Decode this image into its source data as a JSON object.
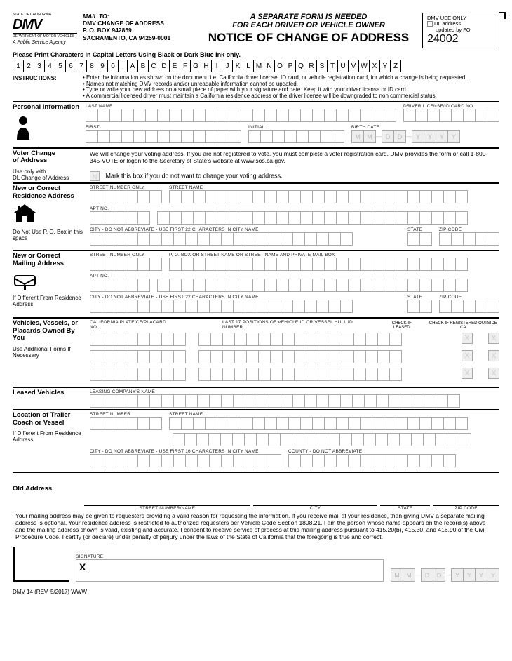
{
  "logo": {
    "text": "DMV",
    "sub": "DEPARTMENT OF MOTOR VEHICLES",
    "agency": "A Public Service Agency",
    "state": "STATE OF CALIFORNIA"
  },
  "mail": {
    "to": "MAIL TO:",
    "l1": "DMV CHANGE OF ADDRESS",
    "l2": "P. O. BOX 942859",
    "l3": "SACRAMENTO, CA 94259-0001"
  },
  "title": {
    "sep1": "A SEPARATE FORM IS NEEDED",
    "sep2": "FOR EACH DRIVER OR VEHICLE OWNER",
    "main": "NOTICE OF CHANGE OF ADDRESS"
  },
  "usebox": {
    "l1": "DMV USE ONLY",
    "l2": "DL address",
    "l3": "updated by FO",
    "num": "24002"
  },
  "print": "Please Print Characters In Capital Letters Using Black or Dark Blue Ink only.",
  "demo": {
    "nums": [
      "1",
      "2",
      "3",
      "4",
      "5",
      "6",
      "7",
      "8",
      "9",
      "0"
    ],
    "letters": [
      "A",
      "B",
      "C",
      "D",
      "E",
      "F",
      "G",
      "H",
      "I",
      "J",
      "K",
      "L",
      "M",
      "N",
      "O",
      "P",
      "Q",
      "R",
      "S",
      "T",
      "U",
      "V",
      "W",
      "X",
      "Y",
      "Z"
    ]
  },
  "instr": {
    "lbl": "INSTRUCTIONS:",
    "items": [
      "Enter the information as shown on the document, i.e. California driver license, ID card, or vehicle registration card, for which a change is being requested.",
      "Names not matching DMV records and/or unreadable information cannot be updated.",
      "Type or write your new address on a small piece of paper with your signature and date. Keep it with your driver license or ID card.",
      "A commercial licensed driver must maintain a California residence address or the driver license will be downgraded to non commercial status."
    ]
  },
  "personal": {
    "lbl": "Personal Information",
    "last": "LAST NAME",
    "dl": "DRIVER LICENSE/ID CARD NO.",
    "first": "FIRST",
    "initial": "INITIAL",
    "birth": "BIRTH DATE",
    "bd": [
      "M",
      "M",
      "D",
      "D",
      "Y",
      "Y",
      "Y",
      "Y"
    ]
  },
  "voter": {
    "lbl1": "Voter Change",
    "lbl2": "of Address",
    "sub1": "Use only with",
    "sub2": "DL Change of Address",
    "text": "We will change your voting address. If you are not registered to vote, you must complete a voter registration card. DMV provides the form or call 1-800-345-VOTE or logon to the Secretary of State's website at www.sos.ca.gov.",
    "chk": "Mark this box if you do not want to change your voting address.",
    "n": "N"
  },
  "res": {
    "lbl": "New or Correct Residence Address",
    "sub": "Do Not Use P. O. Box in this space",
    "street_no": "STREET NUMBER ONLY",
    "street": "STREET NAME",
    "apt": "APT NO.",
    "city": "CITY - DO NOT ABBREVIATE - USE FIRST 22 CHARACTERS IN CITY NAME",
    "state": "STATE",
    "zip": "ZIP CODE"
  },
  "mailaddr": {
    "lbl": "New or Correct Mailing Address",
    "sub": "If Different From Residence Address",
    "street_no": "STREET NUMBER ONLY",
    "pobox": "P. O. BOX OR STREET NAME OR STREET NAME AND PRIVATE MAIL BOX",
    "apt": "APT NO.",
    "city": "CITY - DO NOT ABBREVIATE - USE FIRST 22 CHARACTERS IN CITY NAME",
    "state": "STATE",
    "zip": "ZIP CODE"
  },
  "veh": {
    "lbl": "Vehicles, Vessels, or Placards Owned By You",
    "sub": "Use Additional Forms If Necessary",
    "plate": "CALIFORNIA PLATE/CF/PLACARD NO.",
    "vin": "LAST 17 POSITIONS OF VEHICLE ID OR VESSEL HULL ID NUMBER",
    "leased": "CHECK IF LEASED",
    "outside": "CHECK IF REGISTERED OUTSIDE CA",
    "x": "X"
  },
  "leased": {
    "lbl": "Leased Vehicles",
    "company": "LEASING COMPANY'S NAME"
  },
  "trailer": {
    "lbl": "Location of Trailer Coach or Vessel",
    "sub": "If Different From Residence Address",
    "street_no": "STREET NUMBER",
    "street": "STREET NAME",
    "city": "CITY - DO NOT ABBREVIATE - USE FIRST 16 CHARACTERS IN CITY NAME",
    "county": "COUNTY - DO NOT ABBREVIATE"
  },
  "old": {
    "lbl": "Old Address",
    "cols": [
      "STREET NUMBER/NAME",
      "CITY",
      "STATE",
      "ZIP CODE"
    ],
    "text": "Your mailing address may be given to requesters providing a valid reason for requesting the information. If you receive mail at your residence, then giving DMV a separate mailing address is optional. Your residence address is restricted to authorized requesters per Vehicle Code Section 1808.21. I am the person whose name appears on the record(s) above and the mailing address shown is valid, existing and accurate. I consent to receive service of process at this mailing address pursuant to 415.20(b), 415.30, and 416.90 of the Civil Procedure Code. I certify (or declare) under penalty of perjury under the laws of the State of California that the foregoing is true and correct.",
    "sig": "SIGNATURE",
    "x": "X",
    "date": [
      "M",
      "M",
      "D",
      "D",
      "Y",
      "Y",
      "Y",
      "Y"
    ]
  },
  "footer": "DMV 14 (REV. 5/2017) WWW"
}
